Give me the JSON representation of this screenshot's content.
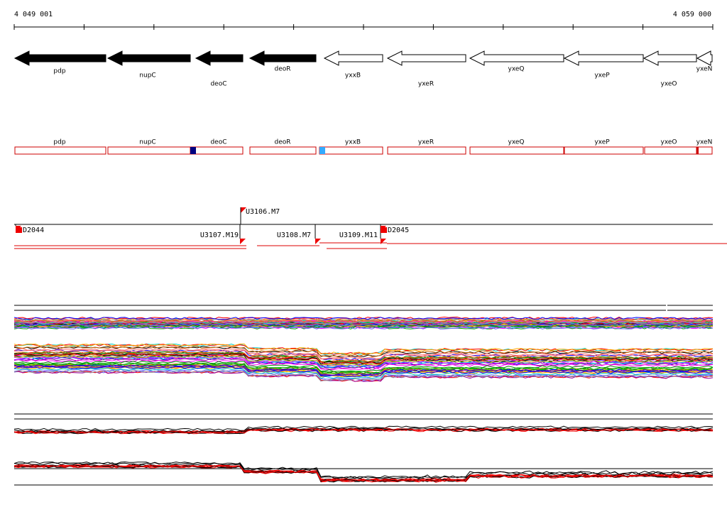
{
  "scale": {
    "start": "4 049 001",
    "end": "4 059 000"
  },
  "genes": [
    {
      "label": "pdp"
    },
    {
      "label": "nupC"
    },
    {
      "label": "deoC"
    },
    {
      "label": "deoR"
    },
    {
      "label": "yxxB"
    },
    {
      "label": "yxeR"
    },
    {
      "label": "yxeQ"
    },
    {
      "label": "yxeP"
    },
    {
      "label": "yxeO"
    },
    {
      "label": "yxeN"
    }
  ],
  "gene_boxes": [
    {
      "label": "pdp"
    },
    {
      "label": "nupC"
    },
    {
      "label": "deoC"
    },
    {
      "label": "deoR"
    },
    {
      "label": "yxxB"
    },
    {
      "label": "yxeR"
    },
    {
      "label": "yxeQ"
    },
    {
      "label": "yxeP"
    },
    {
      "label": "yxeO"
    },
    {
      "label": "yxeN"
    }
  ],
  "features": [
    {
      "label": "U3106.M7"
    },
    {
      "label": "D2044"
    },
    {
      "label": "U3107.M19"
    },
    {
      "label": "U3108.M7"
    },
    {
      "label": "U3109.M11"
    },
    {
      "label": "D2045"
    }
  ]
}
